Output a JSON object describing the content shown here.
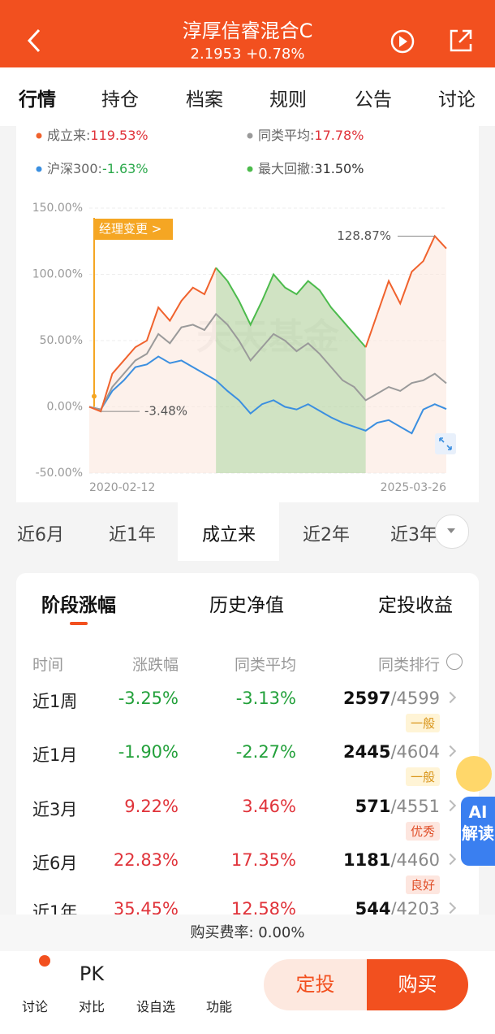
{
  "header": {
    "title": "淳厚信睿混合C",
    "subtitle": "2.1953 +0.78%"
  },
  "tabs": [
    "行情",
    "持仓",
    "档案",
    "规则",
    "公告",
    "讨论"
  ],
  "legend": [
    {
      "label": "成立来:",
      "value": "119.53%",
      "color": "#f0622d"
    },
    {
      "label": "同类平均:",
      "value": "17.78%",
      "color": "#9a9a9a"
    },
    {
      "label": "沪深300:",
      "value": "-1.63%",
      "color": "#3b8fe0"
    },
    {
      "label": "最大回撤:",
      "value": "31.50%",
      "color": "#4cbb4c"
    }
  ],
  "chart": {
    "type": "line",
    "ylim": [
      -50,
      150
    ],
    "yticks": [
      {
        "value": 150,
        "label": "150.00%"
      },
      {
        "value": 100,
        "label": "100.00%"
      },
      {
        "value": 50,
        "label": "50.00%"
      },
      {
        "value": 0,
        "label": "0.00%"
      },
      {
        "value": -50,
        "label": "-50.00%"
      }
    ],
    "x_labels": [
      "2020-02-12",
      "2025-03-26"
    ],
    "annotations": {
      "manager_change": "经理变更 >",
      "max": "128.87%",
      "min": "-3.48%"
    },
    "watermark": "天天基金",
    "series": [
      {
        "name": "成立来",
        "color": "#f0622d",
        "values": [
          0,
          -3.48,
          25,
          35,
          45,
          50,
          75,
          65,
          80,
          90,
          85,
          105,
          95,
          80,
          62,
          80,
          100,
          90,
          85,
          95,
          88,
          75,
          65,
          55,
          45,
          70,
          95,
          78,
          102,
          110,
          128.87,
          119.53
        ]
      },
      {
        "name": "同类平均",
        "color": "#9a9a9a",
        "values": [
          0,
          -2,
          15,
          25,
          35,
          40,
          55,
          48,
          60,
          62,
          58,
          70,
          62,
          50,
          35,
          45,
          55,
          50,
          42,
          48,
          40,
          30,
          20,
          15,
          5,
          10,
          15,
          12,
          18,
          20,
          25,
          17.78
        ]
      },
      {
        "name": "沪深300",
        "color": "#3b8fe0",
        "values": [
          0,
          -2,
          12,
          20,
          30,
          32,
          38,
          33,
          35,
          30,
          25,
          20,
          12,
          5,
          -5,
          2,
          5,
          0,
          -2,
          2,
          -3,
          -8,
          -12,
          -15,
          -18,
          -12,
          -10,
          -15,
          -20,
          -2,
          2,
          -1.63
        ]
      }
    ],
    "drawdown_color": "#4cbb4c"
  },
  "periods": {
    "items": [
      "近6月",
      "近1年",
      "成立来",
      "近2年",
      "近3年"
    ],
    "active": 2
  },
  "sections": {
    "items": [
      "阶段涨幅",
      "历史净值",
      "定投收益"
    ],
    "active": 0
  },
  "table": {
    "header": [
      "时间",
      "涨跌幅",
      "同类平均",
      "同类排行"
    ],
    "rows": [
      {
        "period": "近1周",
        "change": "-3.25%",
        "avg": "-3.13%",
        "rank": "2597",
        "total": "4599",
        "badge": "一般"
      },
      {
        "period": "近1月",
        "change": "-1.90%",
        "avg": "-2.27%",
        "rank": "2445",
        "total": "4604",
        "badge": "一般"
      },
      {
        "period": "近3月",
        "change": "9.22%",
        "avg": "3.46%",
        "rank": "571",
        "total": "4551",
        "badge": "优秀"
      },
      {
        "period": "近6月",
        "change": "22.83%",
        "avg": "17.35%",
        "rank": "1181",
        "total": "4460",
        "badge": "良好"
      },
      {
        "period": "近1年",
        "change": "35.45%",
        "avg": "12.58%",
        "rank": "544",
        "total": "4203"
      }
    ]
  },
  "ai_badge": "AI解读",
  "fee": "购买费率: 0.00%",
  "nav": {
    "items": [
      {
        "icon": "",
        "label": "讨论"
      },
      {
        "icon": "PK",
        "label": "对比"
      },
      {
        "icon": "",
        "label": "设自选"
      },
      {
        "icon": "",
        "label": "功能"
      }
    ],
    "buttons": [
      "定投",
      "购买"
    ]
  }
}
